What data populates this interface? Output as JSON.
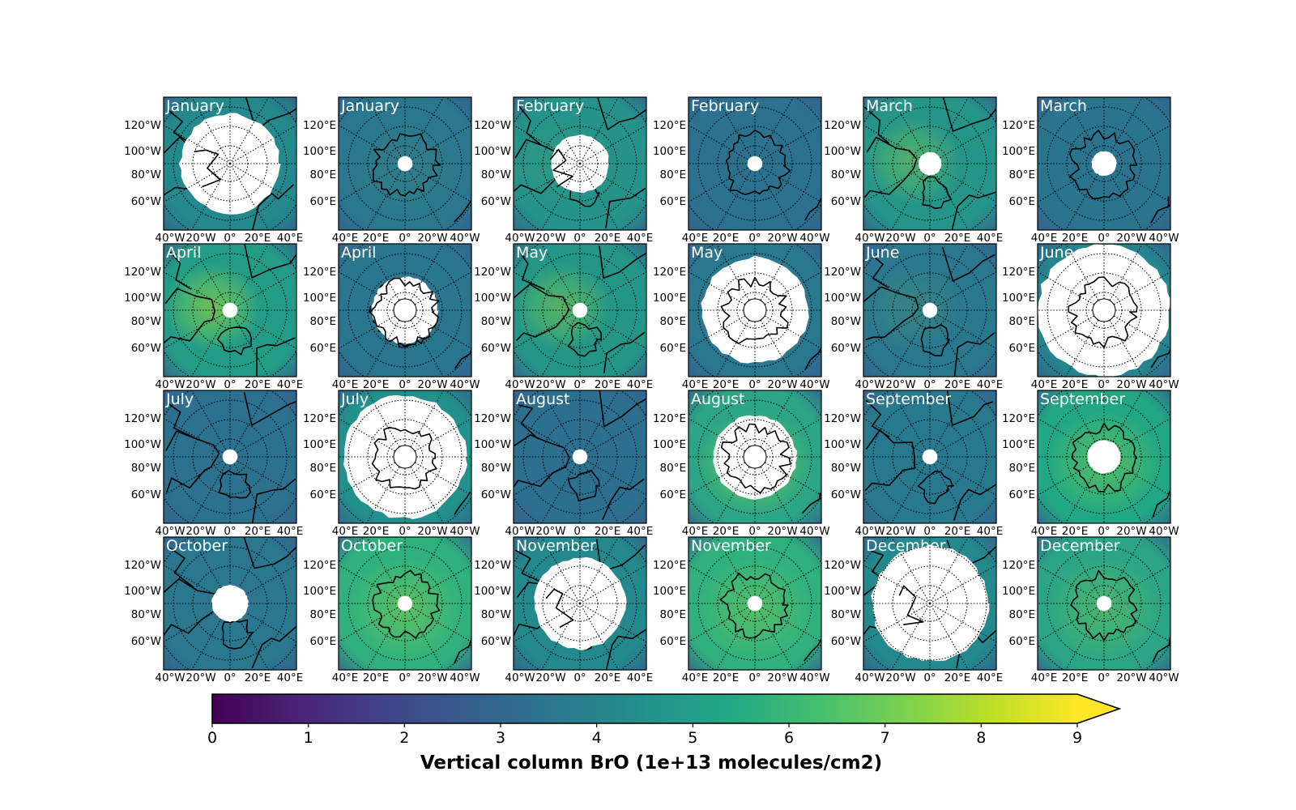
{
  "colorbar": {
    "title": "Vertical column BrO (1e+13 molecules/cm2)",
    "ticks": [
      "0",
      "1",
      "2",
      "3",
      "4",
      "5",
      "6",
      "7",
      "8",
      "9"
    ],
    "min": 0,
    "max": 9,
    "extend": "max",
    "colormap": "viridis",
    "colormap_stops": [
      "#440154",
      "#482475",
      "#414487",
      "#355f8d",
      "#2a788e",
      "#21918c",
      "#22a884",
      "#44bf70",
      "#7ad151",
      "#bddf26",
      "#fde725"
    ]
  },
  "axes_labels": {
    "north_y": [
      "120°W",
      "100°W",
      "80°W",
      "60°W"
    ],
    "north_x": [
      "40°W",
      "20°W",
      "0°",
      "20°E",
      "40°E"
    ],
    "south_y": [
      "120°E",
      "100°E",
      "80°E",
      "60°E"
    ],
    "south_x": [
      "40°E",
      "20°E",
      "0°",
      "20°W",
      "40°W"
    ]
  },
  "panels": [
    {
      "label": "January",
      "hemisphere": "north",
      "bg": "#23898d",
      "hole": 0.6,
      "highlight": 0.0
    },
    {
      "label": "January",
      "hemisphere": "south",
      "bg": "#2a778e",
      "hole": 0.09,
      "highlight": 0.05
    },
    {
      "label": "February",
      "hemisphere": "north",
      "bg": "#25938a",
      "hole": 0.35,
      "highlight": 0.08
    },
    {
      "label": "February",
      "hemisphere": "south",
      "bg": "#2c728e",
      "hole": 0.09,
      "highlight": 0.0
    },
    {
      "label": "March",
      "hemisphere": "north",
      "bg": "#25958a",
      "hole": 0.14,
      "highlight": 0.35
    },
    {
      "label": "March",
      "hemisphere": "south",
      "bg": "#2b748e",
      "hole": 0.15,
      "highlight": 0.0
    },
    {
      "label": "April",
      "hemisphere": "north",
      "bg": "#239c87",
      "hole": 0.09,
      "highlight": 0.55
    },
    {
      "label": "April",
      "hemisphere": "south",
      "bg": "#2a768e",
      "hole": 0.4,
      "highlight": 0.0
    },
    {
      "label": "May",
      "hemisphere": "north",
      "bg": "#239687",
      "hole": 0.09,
      "highlight": 0.4
    },
    {
      "label": "May",
      "hemisphere": "south",
      "bg": "#2a788e",
      "hole": 0.64,
      "highlight": 0.0
    },
    {
      "label": "June",
      "hemisphere": "north",
      "bg": "#2a788e",
      "hole": 0.09,
      "highlight": 0.1
    },
    {
      "label": "June",
      "hemisphere": "south",
      "bg": "#25858e",
      "hole": 0.8,
      "highlight": 0.0
    },
    {
      "label": "July",
      "hemisphere": "north",
      "bg": "#2c718e",
      "hole": 0.09,
      "highlight": 0.0
    },
    {
      "label": "July",
      "hemisphere": "south",
      "bg": "#22918c",
      "hole": 0.74,
      "highlight": 0.0
    },
    {
      "label": "August",
      "hemisphere": "north",
      "bg": "#2d6f8e",
      "hole": 0.09,
      "highlight": 0.0
    },
    {
      "label": "August",
      "hemisphere": "south",
      "bg": "#2ba585",
      "hole": 0.5,
      "highlight": 0.45
    },
    {
      "label": "September",
      "hemisphere": "north",
      "bg": "#29798e",
      "hole": 0.09,
      "highlight": 0.0
    },
    {
      "label": "September",
      "hemisphere": "south",
      "bg": "#22a784",
      "hole": 0.2,
      "highlight": 0.35
    },
    {
      "label": "October",
      "hemisphere": "north",
      "bg": "#2a778e",
      "hole": 0.22,
      "highlight": 0.0
    },
    {
      "label": "October",
      "hemisphere": "south",
      "bg": "#2fb07e",
      "hole": 0.09,
      "highlight": 0.35
    },
    {
      "label": "November",
      "hemisphere": "north",
      "bg": "#23898d",
      "hole": 0.55,
      "highlight": 0.0
    },
    {
      "label": "November",
      "hemisphere": "south",
      "bg": "#2fb07e",
      "hole": 0.09,
      "highlight": 0.3
    },
    {
      "label": "December",
      "hemisphere": "north",
      "bg": "#23898d",
      "hole": 0.7,
      "highlight": 0.0
    },
    {
      "label": "December",
      "hemisphere": "south",
      "bg": "#2ba585",
      "hole": 0.09,
      "highlight": 0.25
    }
  ]
}
